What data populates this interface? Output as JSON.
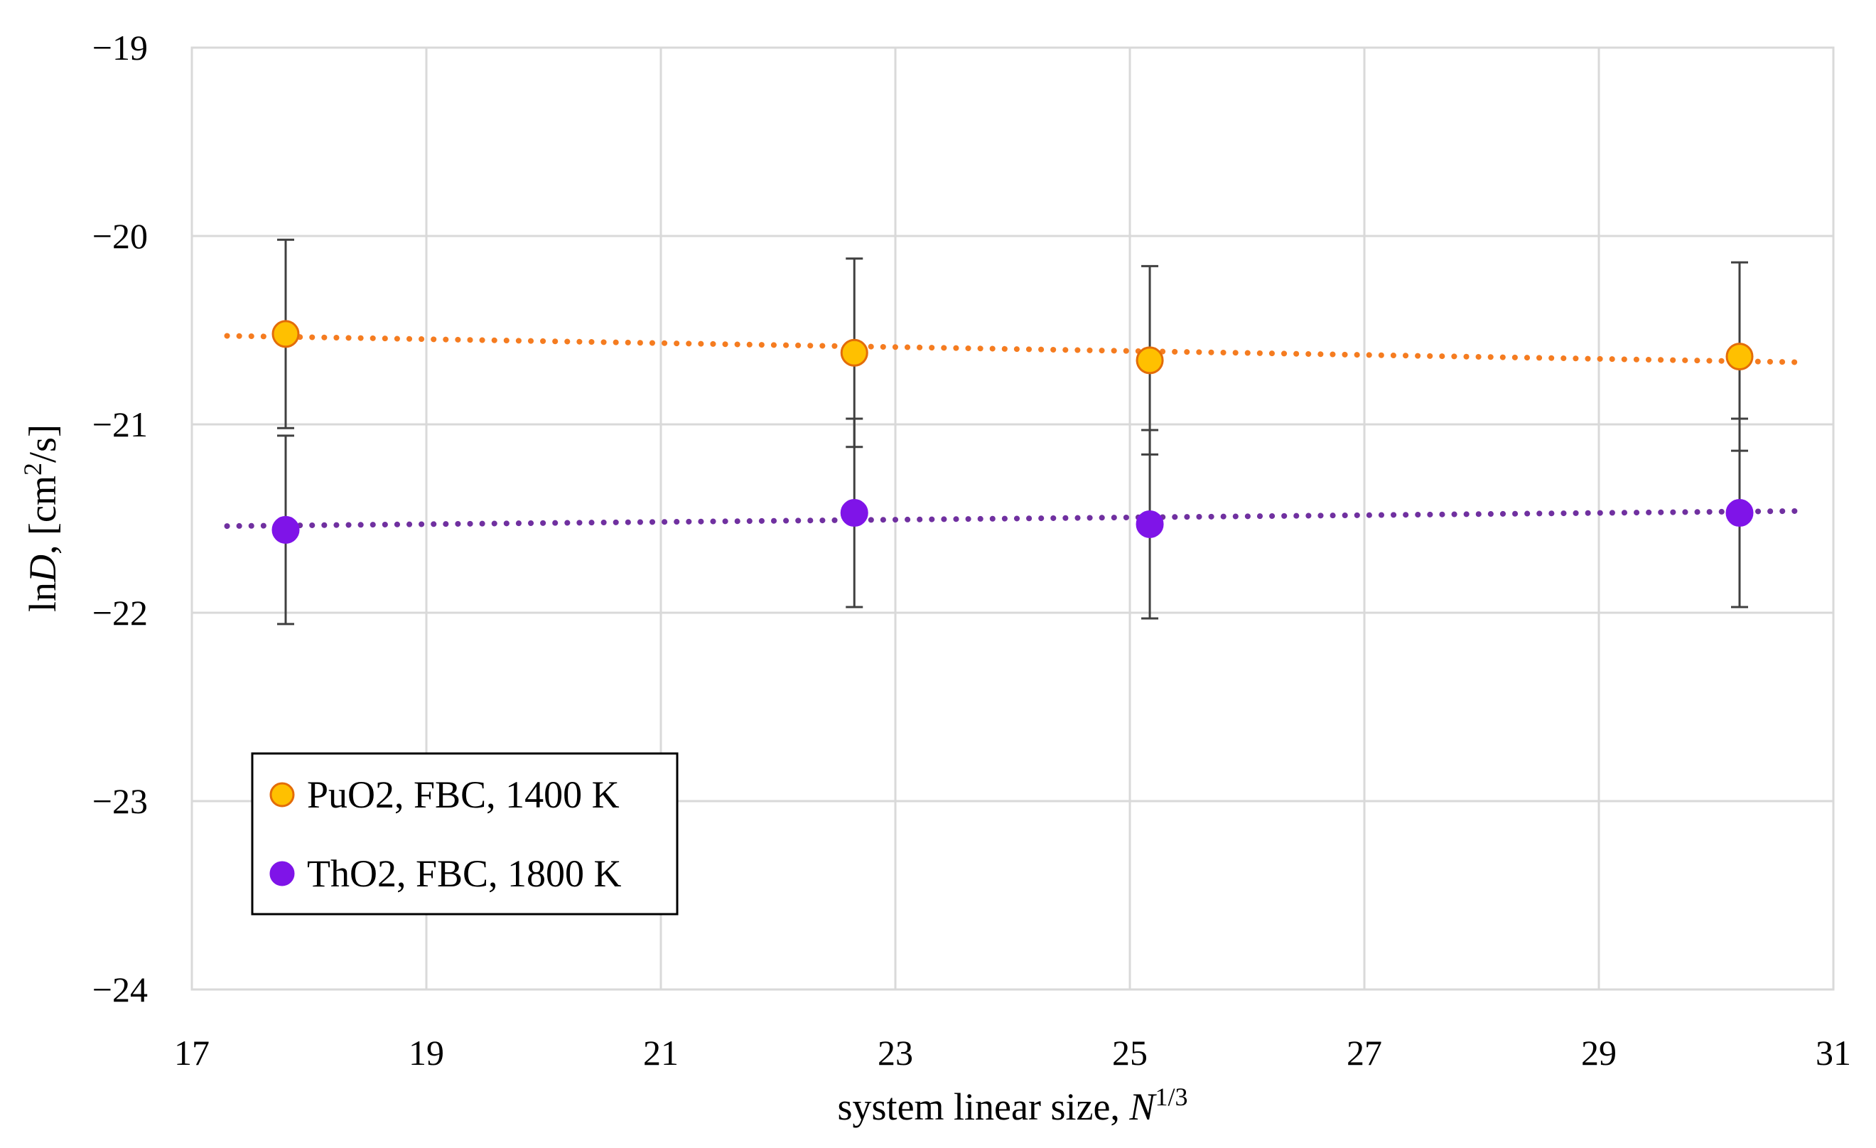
{
  "chart_data": {
    "type": "scatter",
    "title": "",
    "xlabel": {
      "prefix": "system linear size, ",
      "var": "N",
      "sup": "1/3"
    },
    "ylabel": {
      "prefix": "ln",
      "var": "D",
      "units_pre": ", [cm",
      "sup": "2",
      "units_post": "/s]"
    },
    "xlim": [
      17,
      31
    ],
    "ylim": [
      -24,
      -19
    ],
    "xticks": [
      17,
      19,
      21,
      23,
      25,
      27,
      29,
      31
    ],
    "yticks": [
      -24,
      -23,
      -22,
      -21,
      -20,
      -19
    ],
    "ytick_labels": [
      "−24",
      "−23",
      "−22",
      "−21",
      "−20",
      "−19"
    ],
    "grid": true,
    "legend_position": "lower-left",
    "series": [
      {
        "name": "PuO2, FBC, 1400 K",
        "color": "#FFC000",
        "edge_color": "#E36C09",
        "trend_color": "#F57C20",
        "x": [
          17.8,
          22.65,
          25.17,
          30.2
        ],
        "y": [
          -20.52,
          -20.62,
          -20.66,
          -20.64
        ],
        "err": [
          0.5,
          0.5,
          0.5,
          0.5
        ],
        "trend": {
          "x": [
            17.3,
            30.7
          ],
          "y": [
            -20.53,
            -20.67
          ]
        }
      },
      {
        "name": "ThO2, FBC, 1800 K",
        "color": "#7F14E8",
        "edge_color": "#7F14E8",
        "trend_color": "#7030A0",
        "x": [
          17.8,
          22.65,
          25.17,
          30.2
        ],
        "y": [
          -21.56,
          -21.47,
          -21.53,
          -21.47
        ],
        "err": [
          0.5,
          0.5,
          0.5,
          0.5
        ],
        "trend": {
          "x": [
            17.3,
            30.7
          ],
          "y": [
            -21.54,
            -21.46
          ]
        }
      }
    ]
  }
}
